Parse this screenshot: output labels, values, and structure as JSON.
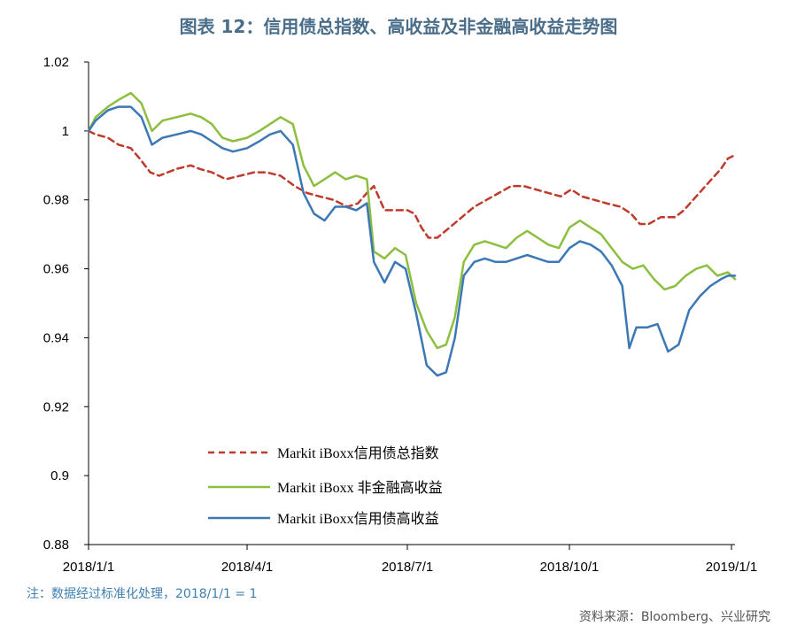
{
  "title": "图表 12：信用债总指数、高收益及非金融高收益走势图",
  "note": "注：数据经过标准化处理，2018/1/1 = 1",
  "source": "资料来源：Bloomberg、兴业研究",
  "chart_data": {
    "type": "line",
    "title": "图表 12：信用债总指数、高收益及非金融高收益走势图",
    "xlabel": "",
    "ylabel": "",
    "x_range": [
      "2018-01-01",
      "2019-01-03"
    ],
    "ylim": [
      0.88,
      1.02
    ],
    "y_ticks": [
      0.88,
      0.9,
      0.92,
      0.94,
      0.96,
      0.98,
      1,
      1.02
    ],
    "y_tick_labels": [
      "0.88",
      "0.9",
      "0.92",
      "0.94",
      "0.96",
      "0.98",
      "1",
      "1.02"
    ],
    "x_ticks": [
      "2018-01-01",
      "2018-04-01",
      "2018-07-01",
      "2018-10-01",
      "2019-01-01"
    ],
    "x_tick_labels": [
      "2018/1/1",
      "2018/4/1",
      "2018/7/1",
      "2018/10/1",
      "2019/1/1"
    ],
    "grid": false,
    "legend_position": "bottom-left",
    "series": [
      {
        "name": "Markit iBoxx信用债总指数",
        "color": "#c0392b",
        "style": "dashed",
        "points": [
          [
            "2018-01-01",
            1.0
          ],
          [
            "2018-01-05",
            0.999
          ],
          [
            "2018-01-12",
            0.998
          ],
          [
            "2018-01-18",
            0.996
          ],
          [
            "2018-01-25",
            0.995
          ],
          [
            "2018-01-30",
            0.992
          ],
          [
            "2018-02-05",
            0.988
          ],
          [
            "2018-02-10",
            0.987
          ],
          [
            "2018-02-20",
            0.989
          ],
          [
            "2018-02-28",
            0.99
          ],
          [
            "2018-03-05",
            0.989
          ],
          [
            "2018-03-12",
            0.988
          ],
          [
            "2018-03-20",
            0.986
          ],
          [
            "2018-03-28",
            0.987
          ],
          [
            "2018-04-05",
            0.988
          ],
          [
            "2018-04-12",
            0.988
          ],
          [
            "2018-04-20",
            0.987
          ],
          [
            "2018-04-28",
            0.984
          ],
          [
            "2018-05-05",
            0.982
          ],
          [
            "2018-05-12",
            0.981
          ],
          [
            "2018-05-20",
            0.98
          ],
          [
            "2018-05-28",
            0.978
          ],
          [
            "2018-06-03",
            0.979
          ],
          [
            "2018-06-08",
            0.982
          ],
          [
            "2018-06-12",
            0.984
          ],
          [
            "2018-06-18",
            0.977
          ],
          [
            "2018-06-25",
            0.977
          ],
          [
            "2018-07-01",
            0.977
          ],
          [
            "2018-07-05",
            0.976
          ],
          [
            "2018-07-09",
            0.972
          ],
          [
            "2018-07-13",
            0.969
          ],
          [
            "2018-07-18",
            0.969
          ],
          [
            "2018-07-25",
            0.972
          ],
          [
            "2018-08-01",
            0.975
          ],
          [
            "2018-08-08",
            0.978
          ],
          [
            "2018-08-15",
            0.98
          ],
          [
            "2018-08-22",
            0.982
          ],
          [
            "2018-08-29",
            0.984
          ],
          [
            "2018-09-05",
            0.984
          ],
          [
            "2018-09-12",
            0.983
          ],
          [
            "2018-09-19",
            0.982
          ],
          [
            "2018-09-26",
            0.981
          ],
          [
            "2018-10-02",
            0.983
          ],
          [
            "2018-10-08",
            0.981
          ],
          [
            "2018-10-15",
            0.98
          ],
          [
            "2018-10-22",
            0.979
          ],
          [
            "2018-10-30",
            0.978
          ],
          [
            "2018-11-05",
            0.976
          ],
          [
            "2018-11-10",
            0.973
          ],
          [
            "2018-11-15",
            0.973
          ],
          [
            "2018-11-22",
            0.975
          ],
          [
            "2018-11-30",
            0.975
          ],
          [
            "2018-12-05",
            0.977
          ],
          [
            "2018-12-12",
            0.981
          ],
          [
            "2018-12-19",
            0.985
          ],
          [
            "2018-12-26",
            0.989
          ],
          [
            "2018-12-30",
            0.992
          ],
          [
            "2019-01-03",
            0.993
          ]
        ]
      },
      {
        "name": "Markit iBoxx 非金融高收益",
        "color": "#8cbf3f",
        "style": "solid",
        "points": [
          [
            "2018-01-01",
            1.0
          ],
          [
            "2018-01-05",
            1.004
          ],
          [
            "2018-01-12",
            1.007
          ],
          [
            "2018-01-18",
            1.009
          ],
          [
            "2018-01-25",
            1.011
          ],
          [
            "2018-01-31",
            1.008
          ],
          [
            "2018-02-06",
            1.0
          ],
          [
            "2018-02-12",
            1.003
          ],
          [
            "2018-02-20",
            1.004
          ],
          [
            "2018-02-28",
            1.005
          ],
          [
            "2018-03-06",
            1.004
          ],
          [
            "2018-03-12",
            1.002
          ],
          [
            "2018-03-18",
            0.998
          ],
          [
            "2018-03-24",
            0.997
          ],
          [
            "2018-04-01",
            0.998
          ],
          [
            "2018-04-08",
            1.0
          ],
          [
            "2018-04-14",
            1.002
          ],
          [
            "2018-04-20",
            1.004
          ],
          [
            "2018-04-27",
            1.002
          ],
          [
            "2018-05-03",
            0.99
          ],
          [
            "2018-05-09",
            0.984
          ],
          [
            "2018-05-15",
            0.986
          ],
          [
            "2018-05-21",
            0.988
          ],
          [
            "2018-05-27",
            0.986
          ],
          [
            "2018-06-02",
            0.987
          ],
          [
            "2018-06-08",
            0.986
          ],
          [
            "2018-06-12",
            0.965
          ],
          [
            "2018-06-18",
            0.963
          ],
          [
            "2018-06-24",
            0.966
          ],
          [
            "2018-06-30",
            0.964
          ],
          [
            "2018-07-06",
            0.95
          ],
          [
            "2018-07-12",
            0.942
          ],
          [
            "2018-07-18",
            0.937
          ],
          [
            "2018-07-23",
            0.938
          ],
          [
            "2018-07-28",
            0.946
          ],
          [
            "2018-08-02",
            0.962
          ],
          [
            "2018-08-08",
            0.967
          ],
          [
            "2018-08-14",
            0.968
          ],
          [
            "2018-08-20",
            0.967
          ],
          [
            "2018-08-26",
            0.966
          ],
          [
            "2018-09-01",
            0.969
          ],
          [
            "2018-09-07",
            0.971
          ],
          [
            "2018-09-13",
            0.969
          ],
          [
            "2018-09-19",
            0.967
          ],
          [
            "2018-09-25",
            0.966
          ],
          [
            "2018-10-01",
            0.972
          ],
          [
            "2018-10-07",
            0.974
          ],
          [
            "2018-10-13",
            0.972
          ],
          [
            "2018-10-19",
            0.97
          ],
          [
            "2018-10-25",
            0.966
          ],
          [
            "2018-10-31",
            0.962
          ],
          [
            "2018-11-06",
            0.96
          ],
          [
            "2018-11-12",
            0.961
          ],
          [
            "2018-11-18",
            0.957
          ],
          [
            "2018-11-24",
            0.954
          ],
          [
            "2018-11-30",
            0.955
          ],
          [
            "2018-12-06",
            0.958
          ],
          [
            "2018-12-12",
            0.96
          ],
          [
            "2018-12-18",
            0.961
          ],
          [
            "2018-12-24",
            0.958
          ],
          [
            "2018-12-30",
            0.959
          ],
          [
            "2019-01-03",
            0.957
          ]
        ]
      },
      {
        "name": "Markit iBoxx信用债高收益",
        "color": "#3c78b5",
        "style": "solid",
        "points": [
          [
            "2018-01-01",
            1.0
          ],
          [
            "2018-01-05",
            1.003
          ],
          [
            "2018-01-12",
            1.006
          ],
          [
            "2018-01-18",
            1.007
          ],
          [
            "2018-01-25",
            1.007
          ],
          [
            "2018-01-31",
            1.004
          ],
          [
            "2018-02-06",
            0.996
          ],
          [
            "2018-02-12",
            0.998
          ],
          [
            "2018-02-20",
            0.999
          ],
          [
            "2018-02-28",
            1.0
          ],
          [
            "2018-03-06",
            0.999
          ],
          [
            "2018-03-12",
            0.997
          ],
          [
            "2018-03-18",
            0.995
          ],
          [
            "2018-03-24",
            0.994
          ],
          [
            "2018-04-01",
            0.995
          ],
          [
            "2018-04-08",
            0.997
          ],
          [
            "2018-04-14",
            0.999
          ],
          [
            "2018-04-20",
            1.0
          ],
          [
            "2018-04-27",
            0.996
          ],
          [
            "2018-05-03",
            0.982
          ],
          [
            "2018-05-09",
            0.976
          ],
          [
            "2018-05-15",
            0.974
          ],
          [
            "2018-05-21",
            0.978
          ],
          [
            "2018-05-27",
            0.978
          ],
          [
            "2018-06-02",
            0.977
          ],
          [
            "2018-06-08",
            0.979
          ],
          [
            "2018-06-12",
            0.962
          ],
          [
            "2018-06-18",
            0.956
          ],
          [
            "2018-06-24",
            0.962
          ],
          [
            "2018-06-30",
            0.96
          ],
          [
            "2018-07-06",
            0.947
          ],
          [
            "2018-07-12",
            0.932
          ],
          [
            "2018-07-18",
            0.929
          ],
          [
            "2018-07-23",
            0.93
          ],
          [
            "2018-07-28",
            0.94
          ],
          [
            "2018-08-02",
            0.958
          ],
          [
            "2018-08-08",
            0.962
          ],
          [
            "2018-08-14",
            0.963
          ],
          [
            "2018-08-20",
            0.962
          ],
          [
            "2018-08-26",
            0.962
          ],
          [
            "2018-09-01",
            0.963
          ],
          [
            "2018-09-07",
            0.964
          ],
          [
            "2018-09-13",
            0.963
          ],
          [
            "2018-09-19",
            0.962
          ],
          [
            "2018-09-25",
            0.962
          ],
          [
            "2018-10-01",
            0.966
          ],
          [
            "2018-10-07",
            0.968
          ],
          [
            "2018-10-13",
            0.967
          ],
          [
            "2018-10-19",
            0.965
          ],
          [
            "2018-10-25",
            0.961
          ],
          [
            "2018-10-31",
            0.955
          ],
          [
            "2018-11-04",
            0.937
          ],
          [
            "2018-11-08",
            0.943
          ],
          [
            "2018-11-14",
            0.943
          ],
          [
            "2018-11-20",
            0.944
          ],
          [
            "2018-11-26",
            0.936
          ],
          [
            "2018-12-02",
            0.938
          ],
          [
            "2018-12-08",
            0.948
          ],
          [
            "2018-12-14",
            0.952
          ],
          [
            "2018-12-20",
            0.955
          ],
          [
            "2018-12-26",
            0.957
          ],
          [
            "2018-12-30",
            0.958
          ],
          [
            "2019-01-03",
            0.958
          ]
        ]
      }
    ]
  }
}
